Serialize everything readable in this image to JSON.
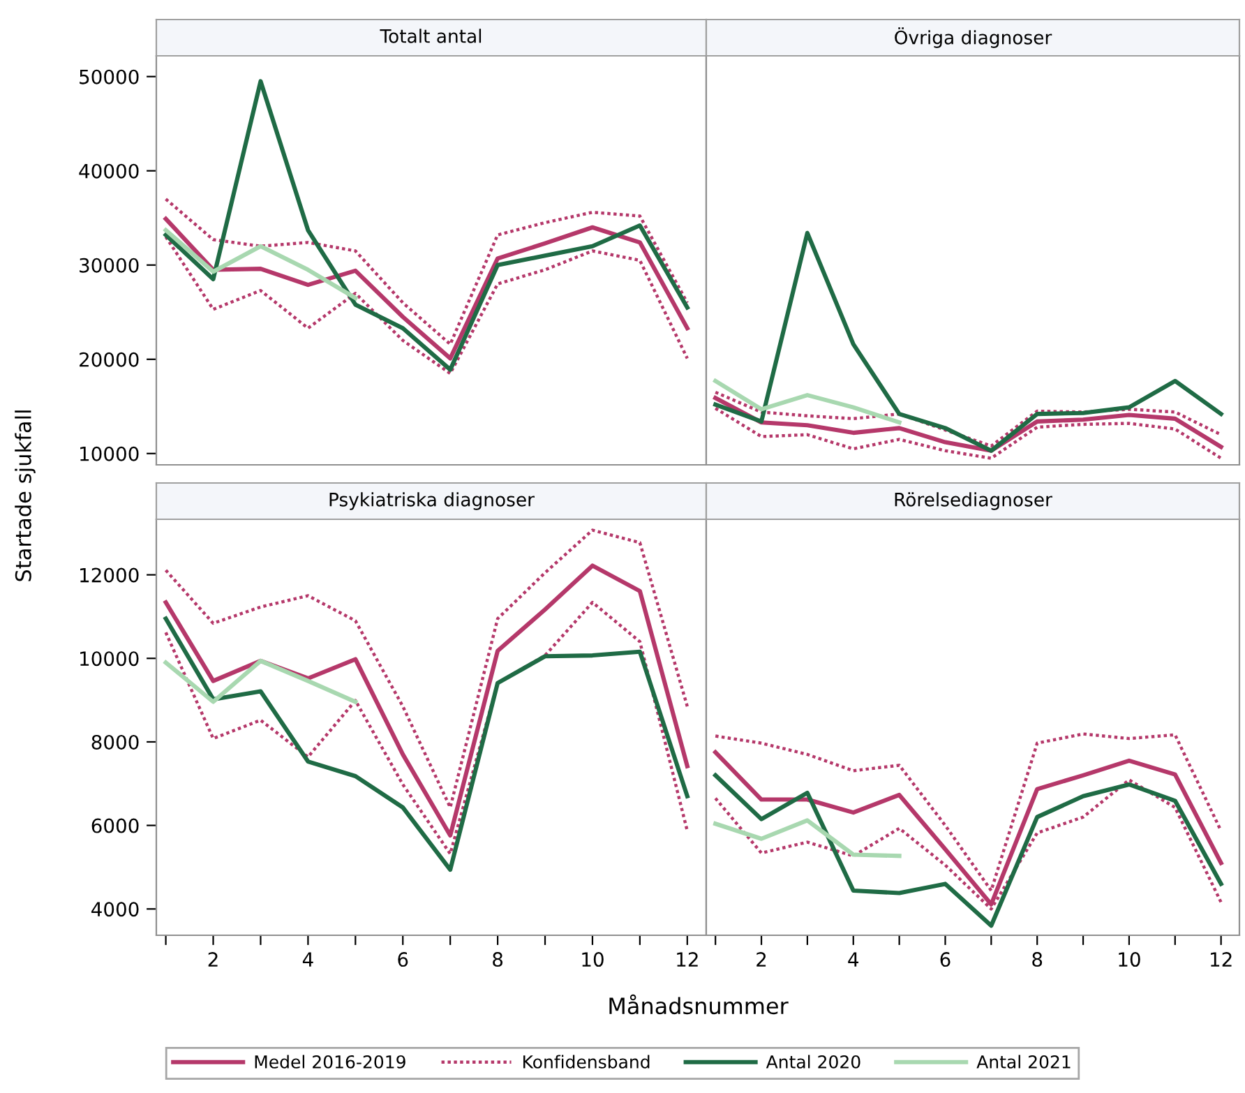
{
  "chart_data": [
    {
      "type": "line",
      "title": "Totalt antal",
      "ylabel": "Startade sjukfall",
      "x": [
        1,
        2,
        3,
        4,
        5,
        6,
        7,
        8,
        9,
        10,
        11,
        12
      ],
      "xlim": [
        0.8,
        12.4
      ],
      "ylim": [
        8800,
        52200
      ],
      "yticks": [
        10000,
        20000,
        30000,
        40000,
        50000
      ],
      "tick_labels": "y",
      "grid": false,
      "legend": "bottom",
      "marker": "none",
      "series": [
        {
          "name": "Medel 2016-2019",
          "color": "#b5386a",
          "line_style": "solid",
          "values": [
            34900,
            29500,
            29600,
            27900,
            29400,
            24500,
            20100,
            30700,
            32300,
            34000,
            32400,
            23300
          ]
        },
        {
          "name": "Konfidensband",
          "color": "#b5386a",
          "line_style": "dotted",
          "values": [
            37000,
            32700,
            32000,
            32400,
            31500,
            26000,
            21600,
            33200,
            34500,
            35600,
            35200,
            26000
          ]
        },
        {
          "color": "#b5386a",
          "line_style": "dotted",
          "values": [
            33000,
            25300,
            27300,
            23300,
            27000,
            22000,
            18500,
            28000,
            29500,
            31500,
            30500,
            20100
          ]
        },
        {
          "name": "Antal 2020",
          "color": "#1f6b45",
          "line_style": "solid",
          "values": [
            33200,
            28500,
            49500,
            33700,
            25800,
            23300,
            18900,
            30000,
            31000,
            32000,
            34200,
            25500
          ]
        },
        {
          "name": "Antal 2021",
          "color": "#a8d8b0",
          "line_style": "solid",
          "values": [
            33700,
            29300,
            32000,
            29500,
            26500,
            null,
            null,
            null,
            null,
            null,
            null,
            null
          ]
        }
      ]
    },
    {
      "type": "line",
      "title": "Övriga diagnoser",
      "x": [
        1,
        2,
        3,
        4,
        5,
        6,
        7,
        8,
        9,
        10,
        11,
        12
      ],
      "xlim": [
        0.8,
        12.4
      ],
      "ylim": [
        8800,
        52200
      ],
      "yticks": [
        10000,
        20000,
        30000,
        40000,
        50000
      ],
      "tick_labels": false,
      "grid": false,
      "marker": "none",
      "series": [
        {
          "color": "#b5386a",
          "line_style": "solid",
          "values": [
            15900,
            13300,
            13000,
            12200,
            12700,
            11200,
            10300,
            13400,
            13600,
            14100,
            13700,
            10700
          ]
        },
        {
          "color": "#b5386a",
          "line_style": "dotted",
          "values": [
            16500,
            14400,
            14000,
            13700,
            14200,
            12500,
            10800,
            14500,
            14400,
            14700,
            14400,
            12000
          ]
        },
        {
          "color": "#b5386a",
          "line_style": "dotted",
          "values": [
            14800,
            11800,
            12000,
            10500,
            11500,
            10300,
            9500,
            12800,
            13100,
            13200,
            12600,
            9500
          ]
        },
        {
          "color": "#1f6b45",
          "line_style": "solid",
          "values": [
            15200,
            13400,
            33400,
            21600,
            14200,
            12700,
            10300,
            14200,
            14300,
            14900,
            17700,
            14200
          ]
        },
        {
          "color": "#a8d8b0",
          "line_style": "solid",
          "values": [
            17700,
            14700,
            16200,
            14900,
            13300,
            null,
            null,
            null,
            null,
            null,
            null,
            null
          ]
        }
      ]
    },
    {
      "type": "line",
      "title": "Psykiatriska diagnoser",
      "xlabel": "Månadsnummer",
      "x": [
        1,
        2,
        3,
        4,
        5,
        6,
        7,
        8,
        9,
        10,
        11,
        12
      ],
      "xlim": [
        0.8,
        12.4
      ],
      "ylim": [
        3370,
        13330
      ],
      "yticks": [
        4000,
        6000,
        8000,
        10000,
        12000
      ],
      "xticks": [
        {
          "value": 1,
          "label": null
        },
        2,
        {
          "value": 3,
          "label": null
        },
        4,
        {
          "value": 5,
          "label": null
        },
        6,
        {
          "value": 7,
          "label": null
        },
        8,
        {
          "value": 9,
          "label": null
        },
        10,
        {
          "value": 11,
          "label": null
        },
        12
      ],
      "grid": false,
      "marker": "none",
      "series": [
        {
          "color": "#b5386a",
          "line_style": "solid",
          "values": [
            11340,
            9460,
            9940,
            9520,
            9980,
            7700,
            5760,
            10180,
            11170,
            12220,
            11610,
            7420
          ]
        },
        {
          "color": "#b5386a",
          "line_style": "dotted",
          "values": [
            12110,
            10840,
            11230,
            11500,
            10900,
            8850,
            6430,
            10950,
            12050,
            13070,
            12770,
            8850
          ]
        },
        {
          "color": "#b5386a",
          "line_style": "dotted",
          "values": [
            10620,
            8080,
            8520,
            7640,
            8990,
            6980,
            5320,
            9410,
            10070,
            11340,
            10400,
            5870
          ]
        },
        {
          "color": "#1f6b45",
          "line_style": "solid",
          "values": [
            10950,
            9020,
            9210,
            7530,
            7180,
            6430,
            4940,
            9410,
            10050,
            10070,
            10160,
            6700
          ]
        },
        {
          "color": "#a8d8b0",
          "line_style": "solid",
          "values": [
            9900,
            8960,
            9940,
            9460,
            8960,
            null,
            null,
            null,
            null,
            null,
            null,
            null
          ]
        }
      ]
    },
    {
      "type": "line",
      "title": "Rörelsediagnoser",
      "x": [
        1,
        2,
        3,
        4,
        5,
        6,
        7,
        8,
        9,
        10,
        11,
        12
      ],
      "xlim": [
        0.8,
        12.4
      ],
      "ylim": [
        3370,
        13330
      ],
      "yticks": [
        4000,
        6000,
        8000,
        10000,
        12000
      ],
      "xticks": [
        {
          "value": 1,
          "label": null
        },
        2,
        {
          "value": 3,
          "label": null
        },
        4,
        {
          "value": 5,
          "label": null
        },
        6,
        {
          "value": 7,
          "label": null
        },
        8,
        {
          "value": 9,
          "label": null
        },
        10,
        {
          "value": 11,
          "label": null
        },
        12
      ],
      "tick_labels": "x",
      "grid": false,
      "marker": "none",
      "series": [
        {
          "color": "#b5386a",
          "line_style": "solid",
          "values": [
            7750,
            6620,
            6620,
            6310,
            6730,
            5430,
            4110,
            6870,
            7200,
            7550,
            7220,
            5100
          ]
        },
        {
          "color": "#b5386a",
          "line_style": "dotted",
          "values": [
            8140,
            7970,
            7700,
            7310,
            7440,
            6000,
            4440,
            7970,
            8190,
            8080,
            8170,
            5870
          ]
        },
        {
          "color": "#b5386a",
          "line_style": "dotted",
          "values": [
            6650,
            5340,
            5600,
            5270,
            5930,
            5050,
            4000,
            5820,
            6200,
            7090,
            6430,
            4160
          ]
        },
        {
          "color": "#1f6b45",
          "line_style": "solid",
          "values": [
            7200,
            6150,
            6780,
            4440,
            4380,
            4600,
            3600,
            6200,
            6700,
            6980,
            6590,
            4600
          ]
        },
        {
          "color": "#a8d8b0",
          "line_style": "solid",
          "values": [
            6040,
            5680,
            6120,
            5300,
            5270,
            null,
            null,
            null,
            null,
            null,
            null,
            null
          ]
        }
      ]
    }
  ]
}
